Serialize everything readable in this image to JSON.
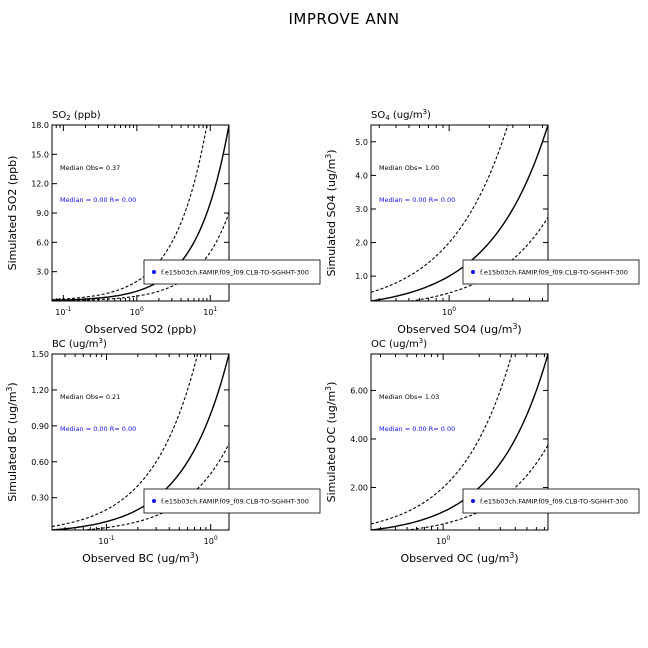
{
  "page_title": "IMPROVE ANN",
  "legend_label": "f.e15b03ch.FAMIP.f09_f09.CLB-TO-SGHHT-300",
  "colors": {
    "blue": "#1010ee",
    "black": "#000000"
  },
  "chart_data": [
    {
      "id": "so2",
      "type": "scatter",
      "title_parts": {
        "base": "SO",
        "sub": "2",
        "rest": " (ppb)"
      },
      "xlabel": "Observed SO2 (ppb)",
      "ylabel": "Simulated SO2 (ppb)",
      "xscale": "log",
      "xlim": [
        0.07,
        18.0
      ],
      "ylim": [
        0,
        18.0
      ],
      "xticks": [
        {
          "value": 0.1,
          "base": "10",
          "exp": "-1"
        },
        {
          "value": 1,
          "base": "10",
          "exp": "0"
        },
        {
          "value": 10,
          "base": "10",
          "exp": "1"
        }
      ],
      "yticks": [
        {
          "value": 3.0,
          "label": "3.0"
        },
        {
          "value": 6.0,
          "label": "6.0"
        },
        {
          "value": 9.0,
          "label": "9.0"
        },
        {
          "value": 12.0,
          "label": "12.0"
        },
        {
          "value": 15.0,
          "label": "15.0"
        },
        {
          "value": 18.0,
          "label": "18.0"
        }
      ],
      "median_obs_text": "Median Obs= 0.37",
      "median_model_text": "Median = 0.00  R= 0.00"
    },
    {
      "id": "so4",
      "type": "scatter",
      "title_parts": {
        "base": "SO",
        "sub": "4",
        "rest": " (ug/m",
        "sup": "3",
        "end": ")"
      },
      "xlabel_parts": {
        "base": "Observed SO4 (ug/m",
        "sup": "3",
        "end": ")"
      },
      "ylabel_parts": {
        "base": "Simulated SO4 (ug/m",
        "sup": "3",
        "end": ")"
      },
      "xscale": "log",
      "xlim": [
        0.26,
        5.5
      ],
      "ylim": [
        0.26,
        5.5
      ],
      "xticks": [
        {
          "value": 1,
          "base": "10",
          "exp": "0"
        }
      ],
      "yticks": [
        {
          "value": 1.0,
          "label": "1.0"
        },
        {
          "value": 2.0,
          "label": "2.0"
        },
        {
          "value": 3.0,
          "label": "3.0"
        },
        {
          "value": 4.0,
          "label": "4.0"
        },
        {
          "value": 5.0,
          "label": "5.0"
        }
      ],
      "median_obs_text": "Median Obs= 1.00",
      "median_model_text": "Median = 0.00  R= 0.00"
    },
    {
      "id": "bc",
      "type": "scatter",
      "title_parts": {
        "base": "BC  (ug/m",
        "sup": "3",
        "end": ")"
      },
      "xlabel_parts": {
        "base": "Observed BC  (ug/m",
        "sup": "3",
        "end": ")"
      },
      "ylabel_parts": {
        "base": "Simulated BC  (ug/m",
        "sup": "3",
        "end": ")"
      },
      "xscale": "log",
      "xlim": [
        0.03,
        1.5
      ],
      "ylim": [
        0.03,
        1.5
      ],
      "xticks": [
        {
          "value": 0.1,
          "base": "10",
          "exp": "-1"
        },
        {
          "value": 1,
          "base": "10",
          "exp": "0"
        }
      ],
      "yticks": [
        {
          "value": 0.3,
          "label": "0.30"
        },
        {
          "value": 0.6,
          "label": "0.60"
        },
        {
          "value": 0.9,
          "label": "0.90"
        },
        {
          "value": 1.2,
          "label": "1.20"
        },
        {
          "value": 1.5,
          "label": "1.50"
        }
      ],
      "median_obs_text": "Median Obs= 0.21",
      "median_model_text": "Median = 0.00  R= 0.00"
    },
    {
      "id": "oc",
      "type": "scatter",
      "title_parts": {
        "base": "OC  (ug/m",
        "sup": "3",
        "end": ")"
      },
      "xlabel_parts": {
        "base": "Observed OC  (ug/m",
        "sup": "3",
        "end": ")"
      },
      "ylabel_parts": {
        "base": "Simulated OC  (ug/m",
        "sup": "3",
        "end": ")"
      },
      "xscale": "log",
      "xlim": [
        0.25,
        7.5
      ],
      "ylim": [
        0.25,
        7.5
      ],
      "xticks": [
        {
          "value": 1,
          "base": "10",
          "exp": "0"
        }
      ],
      "yticks": [
        {
          "value": 2.0,
          "label": "2.00"
        },
        {
          "value": 4.0,
          "label": "4.00"
        },
        {
          "value": 6.0,
          "label": "6.00"
        }
      ],
      "median_obs_text": "Median Obs= 1.03",
      "median_model_text": "Median = 0.00  R= 0.00"
    }
  ]
}
